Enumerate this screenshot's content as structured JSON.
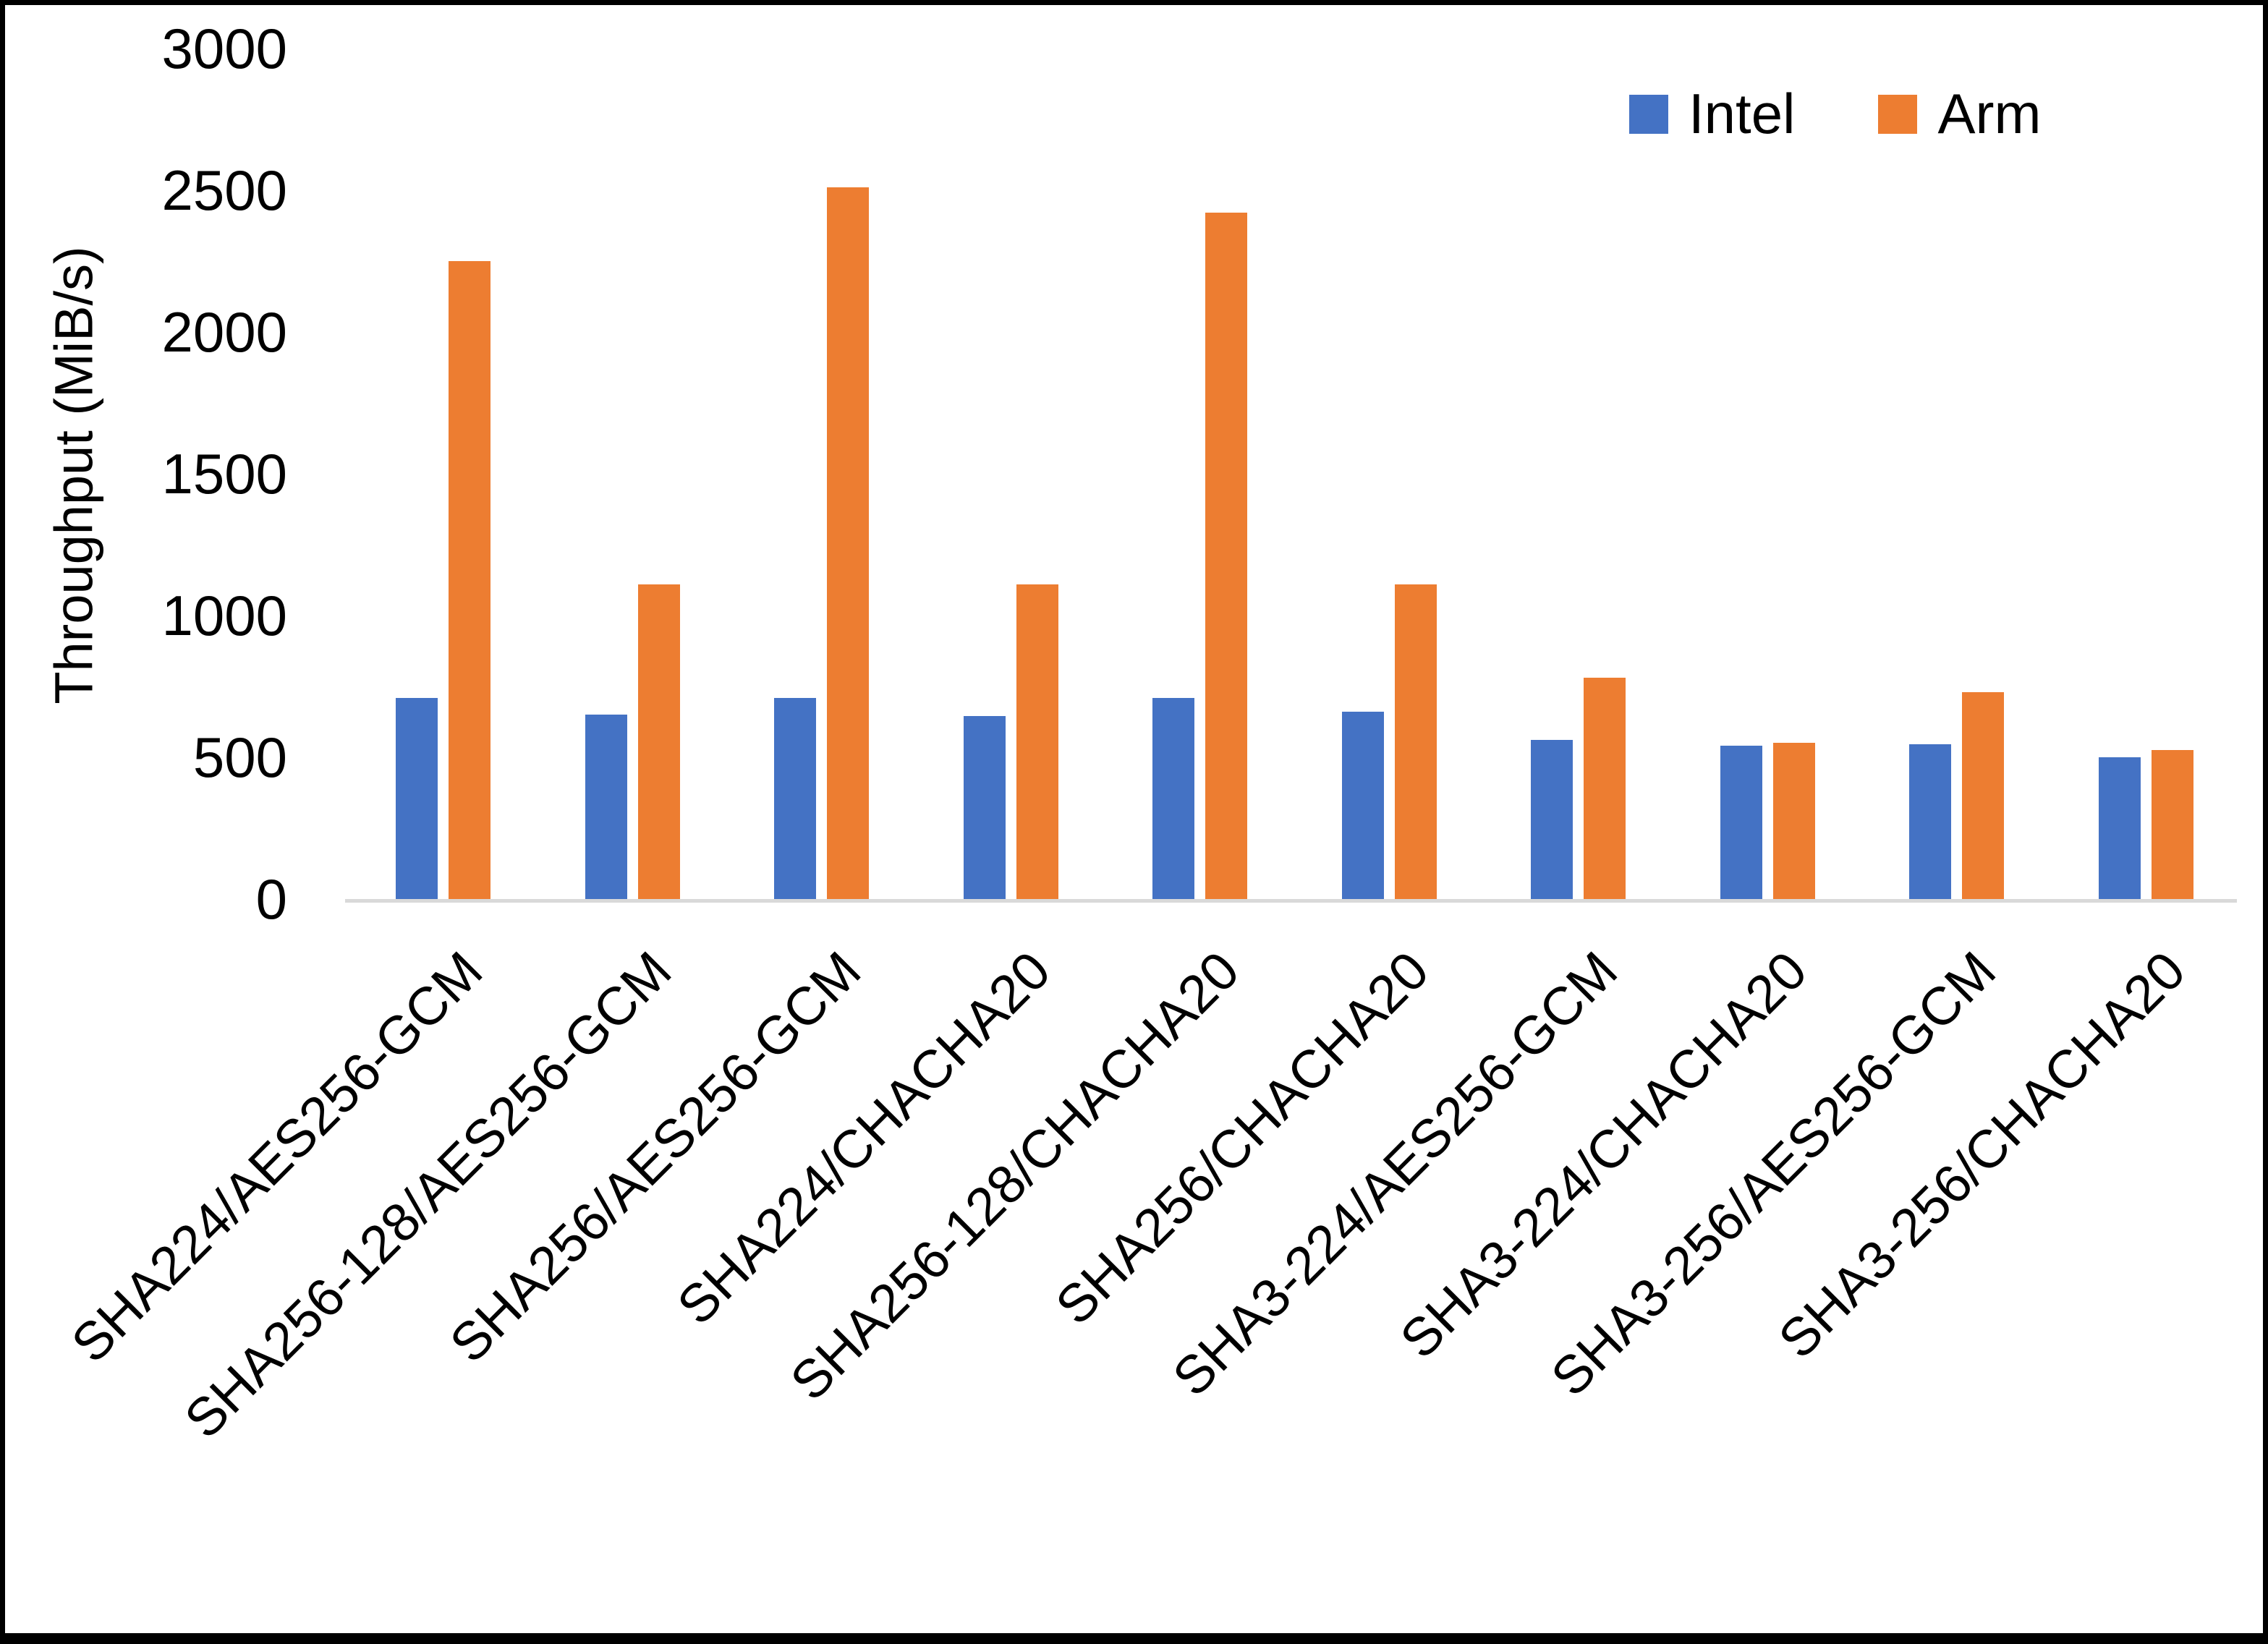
{
  "chart_data": {
    "type": "bar",
    "categories": [
      "SHA224/AES256-GCM",
      "SHA256-128/AES256-GCM",
      "SHA256/AES256-GCM",
      "SHA224/CHACHA20",
      "SHA256-128/CHACHA20",
      "SHA256/CHACHA20",
      "SHA3-224/AES256-GCM",
      "SHA3-224/CHACHA20",
      "SHA3-256/AES256-GCM",
      "SHA3-256/CHACHA20"
    ],
    "series": [
      {
        "name": "Intel",
        "color": "#4472C4",
        "values": [
          710,
          650,
          710,
          645,
          710,
          660,
          560,
          540,
          545,
          500
        ]
      },
      {
        "name": "Arm",
        "color": "#ED7D31",
        "values": [
          2250,
          1110,
          2510,
          1110,
          2420,
          1110,
          780,
          550,
          730,
          525
        ]
      }
    ],
    "title": "",
    "xlabel": "",
    "ylabel": "Throughput (MiB/s)",
    "ylim": [
      0,
      3000
    ],
    "ytick_step": 500,
    "yticks": [
      0,
      500,
      1000,
      1500,
      2000,
      2500,
      3000
    ],
    "grid": "off",
    "legend_position": "top-right",
    "axis_line_color": "#d9d9d9",
    "background": "#ffffff",
    "frame_border_color": "#000000"
  }
}
